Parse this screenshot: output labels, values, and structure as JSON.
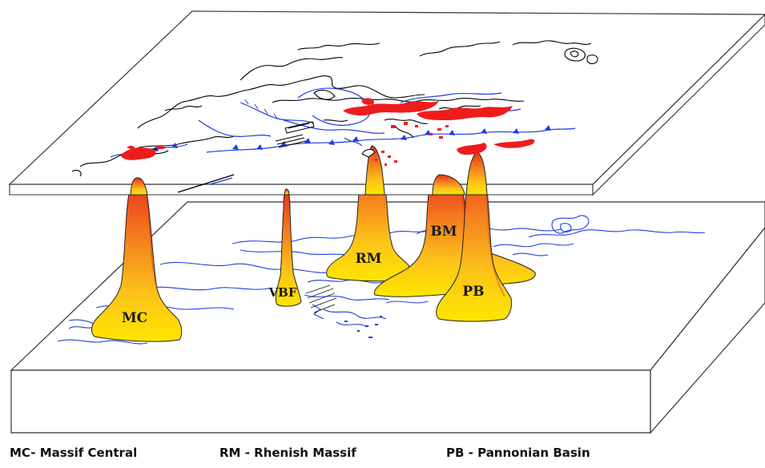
{
  "plumes": [
    {
      "id": "mc",
      "label": "MC"
    },
    {
      "id": "vbf",
      "label": "VBF"
    },
    {
      "id": "rm",
      "label": "RM"
    },
    {
      "id": "bm",
      "label": "BM"
    },
    {
      "id": "pb",
      "label": "PB"
    }
  ],
  "legend": [
    {
      "id": "mc",
      "text": "MC- Massif Central"
    },
    {
      "id": "rm",
      "text": "RM - Rhenish Massif"
    },
    {
      "id": "pb",
      "text": "PB - Pannonian Basin"
    }
  ],
  "colors": {
    "plume_top": "#e8301a",
    "plume_mid": "#f59a1e",
    "plume_base": "#ffe600",
    "volcanics": "#ee1c1c",
    "tectonic_lines": "#1f3fe0",
    "coastline": "#000000"
  }
}
